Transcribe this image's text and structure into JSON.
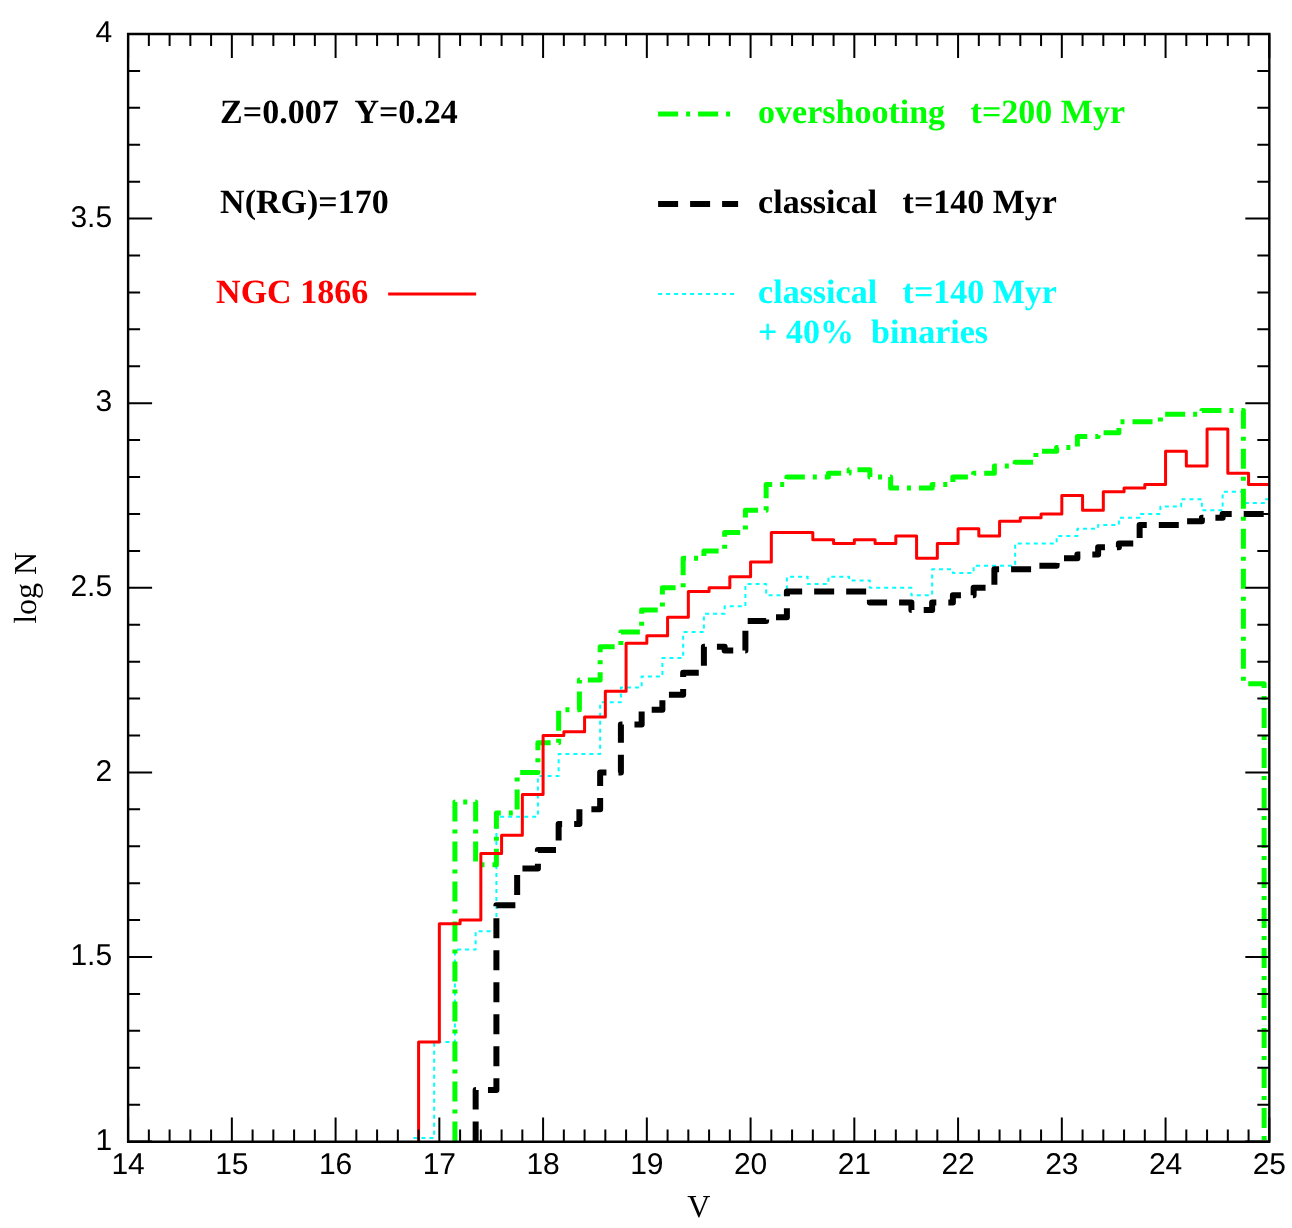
{
  "chart_data": {
    "type": "step",
    "xlabel": "V",
    "ylabel": "log N",
    "xlim": [
      14,
      25
    ],
    "xticks": [
      14,
      15,
      16,
      17,
      18,
      19,
      20,
      21,
      22,
      23,
      24,
      25
    ],
    "ylim": [
      1,
      4
    ],
    "yticks": [
      1,
      1.5,
      2,
      2.5,
      3,
      3.5,
      4
    ],
    "grid": false,
    "legend": "top",
    "marker": "none",
    "annotations": [
      "Z=0.007  Y=0.24",
      "N(RG)=170"
    ],
    "series": [
      {
        "name": "NGC 1866",
        "color": "#ff0000",
        "line_style": "solid",
        "x": [
          16.8,
          16.8,
          17.0,
          17.2,
          17.4,
          17.6,
          17.8,
          18.0,
          18.2,
          18.4,
          18.6,
          18.8,
          19.0,
          19.2,
          19.4,
          19.6,
          19.8,
          20.0,
          20.2,
          20.4,
          20.6,
          20.8,
          21.0,
          21.2,
          21.4,
          21.6,
          21.8,
          22.0,
          22.2,
          22.4,
          22.6,
          22.8,
          23.0,
          23.2,
          23.4,
          23.6,
          23.8,
          24.0,
          24.2,
          24.4,
          24.6,
          24.8,
          25.0
        ],
        "values": [
          1,
          1.27,
          1.59,
          1.6,
          1.78,
          1.83,
          1.94,
          2.1,
          2.11,
          2.15,
          2.22,
          2.35,
          2.37,
          2.42,
          2.49,
          2.5,
          2.53,
          2.57,
          2.65,
          2.65,
          2.63,
          2.62,
          2.63,
          2.62,
          2.64,
          2.58,
          2.62,
          2.66,
          2.64,
          2.68,
          2.69,
          2.7,
          2.75,
          2.71,
          2.76,
          2.77,
          2.78,
          2.87,
          2.83,
          2.93,
          2.81,
          2.78,
          2.78
        ]
      },
      {
        "name": "overshooting   t=200 Myr",
        "color": "#00ff00",
        "line_style": "dashdot",
        "x": [
          17.15,
          17.15,
          17.35,
          17.55,
          17.75,
          17.95,
          18.15,
          18.35,
          18.55,
          18.75,
          18.95,
          19.15,
          19.35,
          19.55,
          19.75,
          19.95,
          20.15,
          20.35,
          20.55,
          20.75,
          20.95,
          21.15,
          21.35,
          21.55,
          21.75,
          21.95,
          22.15,
          22.35,
          22.55,
          22.75,
          22.95,
          23.15,
          23.35,
          23.55,
          23.75,
          23.95,
          24.15,
          24.35,
          24.55,
          24.75,
          24.95
        ],
        "values": [
          1,
          1.92,
          1.75,
          1.89,
          2.0,
          2.08,
          2.17,
          2.25,
          2.34,
          2.38,
          2.44,
          2.5,
          2.58,
          2.6,
          2.65,
          2.71,
          2.78,
          2.8,
          2.8,
          2.81,
          2.82,
          2.8,
          2.77,
          2.77,
          2.78,
          2.8,
          2.81,
          2.83,
          2.84,
          2.87,
          2.88,
          2.91,
          2.92,
          2.95,
          2.95,
          2.97,
          2.97,
          2.98,
          2.98,
          2.24,
          1
        ]
      },
      {
        "name": "classical   t=140 Myr",
        "color": "#000000",
        "line_style": "dashed",
        "x": [
          17.35,
          17.35,
          17.55,
          17.75,
          17.95,
          18.15,
          18.35,
          18.55,
          18.75,
          18.95,
          19.15,
          19.35,
          19.55,
          19.75,
          19.95,
          20.15,
          20.35,
          20.55,
          20.75,
          20.95,
          21.15,
          21.35,
          21.55,
          21.75,
          21.95,
          22.15,
          22.35,
          22.55,
          22.75,
          22.95,
          23.15,
          23.35,
          23.55,
          23.75,
          23.95,
          24.15,
          24.35,
          24.55,
          24.75,
          25.0
        ],
        "values": [
          1,
          1.14,
          1.64,
          1.74,
          1.79,
          1.86,
          1.9,
          2.0,
          2.13,
          2.17,
          2.21,
          2.27,
          2.34,
          2.33,
          2.41,
          2.42,
          2.49,
          2.49,
          2.49,
          2.49,
          2.46,
          2.46,
          2.44,
          2.46,
          2.48,
          2.5,
          2.55,
          2.55,
          2.56,
          2.58,
          2.59,
          2.61,
          2.62,
          2.67,
          2.67,
          2.68,
          2.69,
          2.7,
          2.7,
          2.7
        ]
      },
      {
        "name": "classical   t=140 Myr\n+ 40%  binaries",
        "color": "#00ffff",
        "line_style": "dotted",
        "x": [
          16.75,
          16.95,
          17.15,
          17.35,
          17.55,
          17.75,
          17.95,
          18.15,
          18.35,
          18.55,
          18.75,
          18.95,
          19.15,
          19.35,
          19.55,
          19.75,
          19.95,
          20.15,
          20.35,
          20.55,
          20.75,
          20.95,
          21.15,
          21.35,
          21.55,
          21.75,
          21.95,
          22.15,
          22.35,
          22.55,
          22.75,
          22.95,
          23.15,
          23.35,
          23.55,
          23.75,
          23.95,
          24.15,
          24.35,
          24.55,
          24.75,
          24.95,
          25.0
        ],
        "values": [
          1.01,
          1.27,
          1.52,
          1.57,
          1.88,
          1.88,
          1.99,
          2.05,
          2.05,
          2.19,
          2.23,
          2.26,
          2.31,
          2.38,
          2.43,
          2.45,
          2.51,
          2.48,
          2.53,
          2.51,
          2.53,
          2.52,
          2.5,
          2.5,
          2.48,
          2.55,
          2.54,
          2.56,
          2.56,
          2.62,
          2.62,
          2.64,
          2.66,
          2.67,
          2.69,
          2.7,
          2.72,
          2.74,
          2.71,
          2.76,
          2.73,
          2.74,
          2.74
        ]
      }
    ]
  }
}
